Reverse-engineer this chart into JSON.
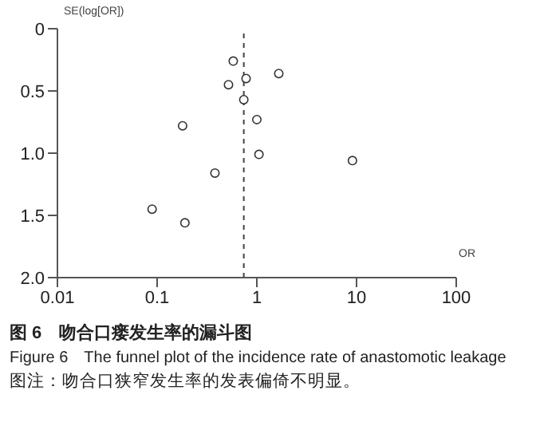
{
  "chart_data": {
    "type": "scatter",
    "title": "图 6　吻合口瘘发生率的漏斗图",
    "subtitle": "Figure 6　The funnel plot of the incidence rate of anastomotic leakage",
    "annotations": [
      "图注：吻合口狭窄发生率的发表偏倚不明显。"
    ],
    "xlabel": "OR",
    "ylabel": "SE(log[OR])",
    "x": [
      0.58,
      1.66,
      0.78,
      0.52,
      0.74,
      1.0,
      0.18,
      1.05,
      9.1,
      0.38,
      0.089,
      0.19
    ],
    "values": [
      0.26,
      0.36,
      0.4,
      0.45,
      0.57,
      0.73,
      0.78,
      1.01,
      1.06,
      1.16,
      1.45,
      1.56
    ],
    "color": "#333333",
    "marker": "circle",
    "log": "x",
    "xlim": [
      0.01,
      100
    ],
    "xticks": [
      0.01,
      0.1,
      1,
      10,
      100
    ],
    "ylim": [
      2,
      0
    ],
    "yticks": [
      0,
      0.5,
      {
        "value": 1,
        "label": "1.0"
      },
      1.5,
      {
        "value": 2,
        "label": "2.0"
      }
    ],
    "ref_lines": [
      {
        "axis": "x",
        "value": 0.74,
        "line_style": "dashed"
      }
    ],
    "grid": false,
    "legend": false
  }
}
